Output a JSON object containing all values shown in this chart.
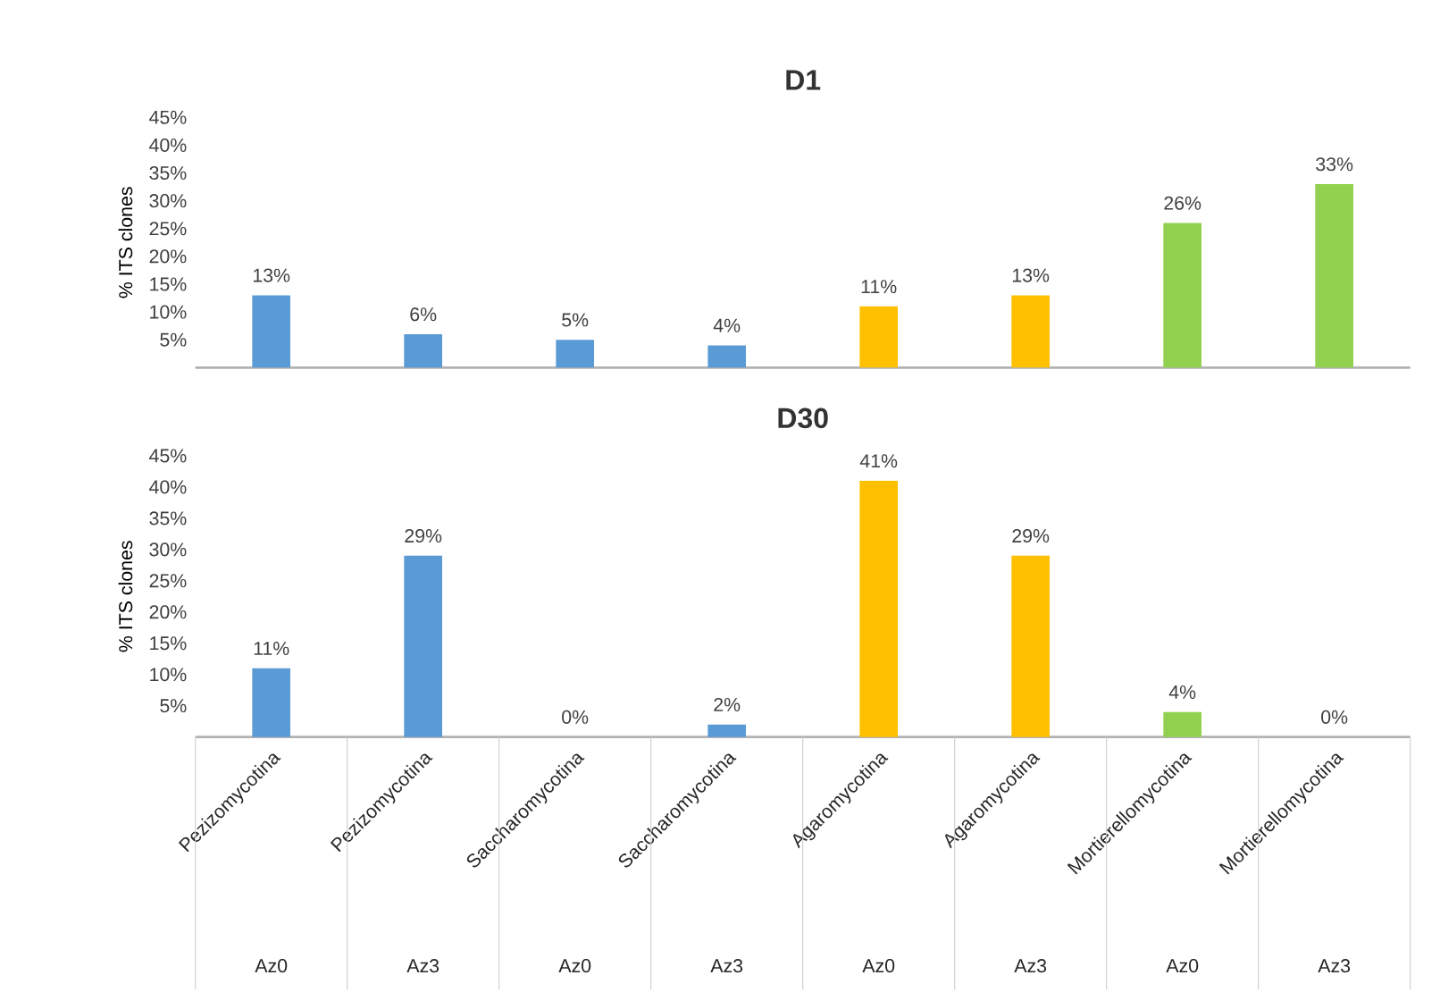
{
  "chart_data": [
    {
      "type": "bar",
      "title": "D1",
      "ylabel": "% ITS clones",
      "categories": [
        null,
        null,
        null,
        null,
        null,
        null,
        null,
        null
      ],
      "values": [
        13,
        6,
        5,
        4,
        11,
        13,
        26,
        33
      ],
      "value_labels": [
        "13%",
        "6%",
        "5%",
        "4%",
        "11%",
        "13%",
        "26%",
        "33%"
      ],
      "colors": [
        "#5b9bd5",
        "#5b9bd5",
        "#5b9bd5",
        "#5b9bd5",
        "#ffc000",
        "#ffc000",
        "#92d050",
        "#92d050"
      ],
      "ylim": [
        0,
        45
      ],
      "yticks": [
        {
          "value": 5,
          "label": "5%"
        },
        {
          "value": 10,
          "label": "10%"
        },
        {
          "value": 15,
          "label": "15%"
        },
        {
          "value": 20,
          "label": "20%"
        },
        {
          "value": 25,
          "label": "25%"
        },
        {
          "value": 30,
          "label": "30%"
        },
        {
          "value": 35,
          "label": "35%"
        },
        {
          "value": 40,
          "label": "40%"
        },
        {
          "value": 45,
          "label": "45%"
        }
      ],
      "tick_labels": "y"
    },
    {
      "type": "bar",
      "title": "D30",
      "ylabel": "% ITS clones",
      "categories": [
        "Pezizomycotina",
        "Pezizomycotina",
        "Saccharomycotina",
        "Saccharomycotina",
        "Agaromycotina",
        "Agaromycotina",
        "Mortierellomycotina",
        "Mortierellomycotina"
      ],
      "values": [
        11,
        29,
        0,
        2,
        41,
        29,
        4,
        0
      ],
      "value_labels": [
        "11%",
        "29%",
        "0%",
        "2%",
        "41%",
        "29%",
        "4%",
        "0%"
      ],
      "colors": [
        "#5b9bd5",
        "#5b9bd5",
        "#5b9bd5",
        "#5b9bd5",
        "#ffc000",
        "#ffc000",
        "#92d050",
        "#92d050"
      ],
      "ylim": [
        0,
        45
      ],
      "yticks": [
        {
          "value": 5,
          "label": "5%"
        },
        {
          "value": 10,
          "label": "10%"
        },
        {
          "value": 15,
          "label": "15%"
        },
        {
          "value": 20,
          "label": "20%"
        },
        {
          "value": 25,
          "label": "25%"
        },
        {
          "value": 30,
          "label": "30%"
        },
        {
          "value": 35,
          "label": "35%"
        },
        {
          "value": 40,
          "label": "40%"
        },
        {
          "value": 45,
          "label": "45%"
        }
      ],
      "annotations": [
        "Az0",
        "Az3",
        "Az0",
        "Az3",
        "Az0",
        "Az3",
        "Az0",
        "Az3"
      ]
    }
  ]
}
